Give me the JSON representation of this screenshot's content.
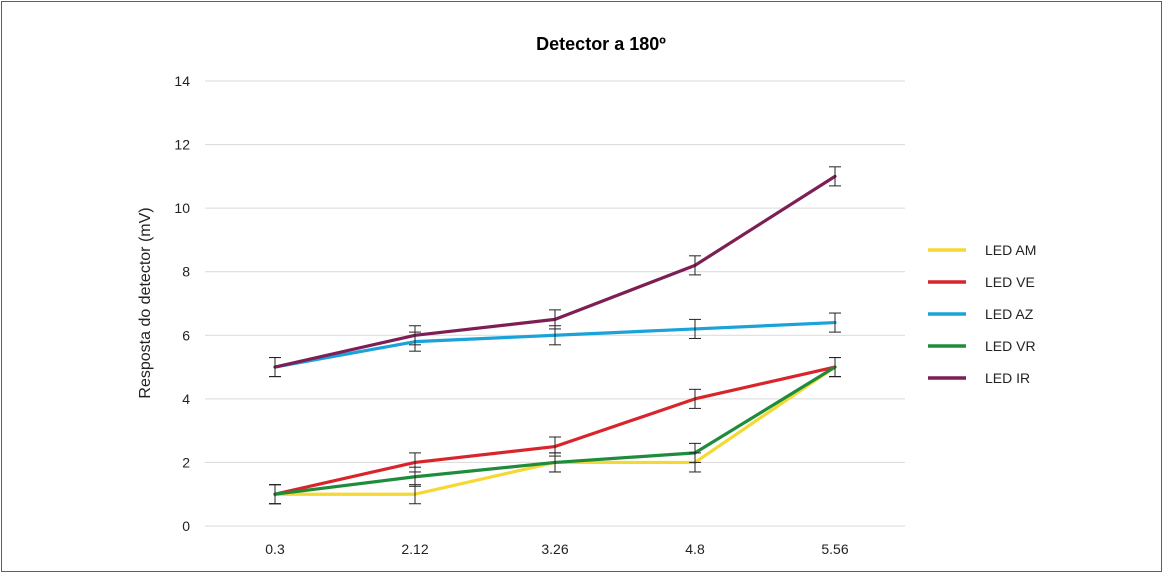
{
  "chart_data": {
    "type": "line",
    "title": "Detector a 180º",
    "xlabel": "",
    "ylabel": "Resposta do detector (mV)",
    "categories": [
      "0.3",
      "2.12",
      "3.26",
      "4.8",
      "5.56"
    ],
    "ylim": [
      0,
      14
    ],
    "yticks": [
      0,
      2,
      4,
      6,
      8,
      10,
      12,
      14
    ],
    "grid": true,
    "legend_position": "right",
    "error_bar": 0.3,
    "series": [
      {
        "name": "LED AM",
        "color": "#f5d834",
        "values": [
          1,
          1,
          2,
          2,
          5
        ]
      },
      {
        "name": "LED VE",
        "color": "#d9242b",
        "values": [
          1,
          2,
          2.5,
          4,
          5
        ]
      },
      {
        "name": "LED AZ",
        "color": "#1aa3d9",
        "values": [
          5,
          5.8,
          6,
          6.2,
          6.4
        ]
      },
      {
        "name": "LED VR",
        "color": "#1f8c3c",
        "values": [
          1,
          1.55,
          2,
          2.3,
          5
        ]
      },
      {
        "name": "LED IR",
        "color": "#7d1f55",
        "values": [
          5,
          6,
          6.5,
          8.2,
          11
        ]
      }
    ]
  }
}
